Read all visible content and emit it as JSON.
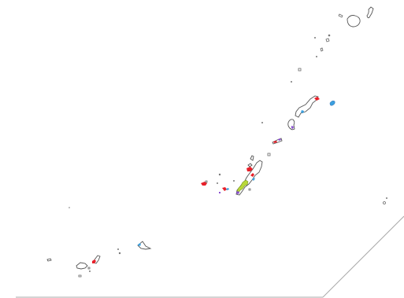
{
  "map": {
    "region": "Ryukyu Islands",
    "background": "#ffffff",
    "coastline_color": "#555555",
    "highlight_colors": {
      "red": "#e8202a",
      "blue": "#3aa0e0",
      "purple": "#8a4fd0",
      "yellow_green": "#b8d838"
    },
    "labels": []
  }
}
